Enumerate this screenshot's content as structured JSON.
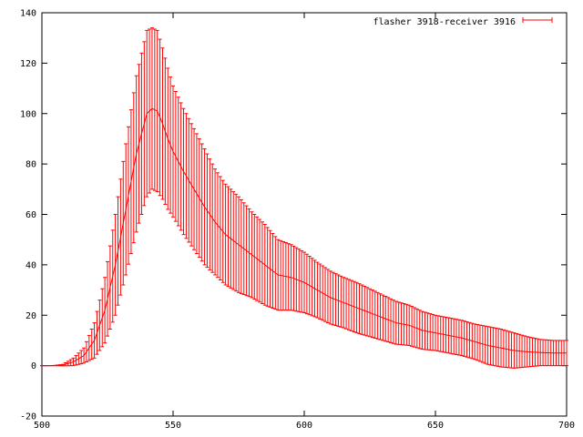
{
  "chart_data": {
    "type": "line",
    "title": "",
    "xlabel": "",
    "ylabel": "",
    "xlim": [
      500,
      700
    ],
    "ylim": [
      -20,
      140
    ],
    "xticks": [
      500,
      550,
      600,
      650,
      700
    ],
    "yticks": [
      -20,
      0,
      20,
      40,
      60,
      80,
      100,
      120,
      140
    ],
    "grid": false,
    "legend_position": "top-right",
    "series": [
      {
        "name": "flasher 3918-receiver 3916",
        "color": "#ff0000",
        "style": "line with y error bars",
        "x": [
          500,
          504,
          508,
          512,
          516,
          520,
          524,
          528,
          532,
          536,
          540,
          542,
          544,
          546,
          548,
          550,
          554,
          558,
          562,
          566,
          570,
          575,
          580,
          585,
          590,
          595,
          600,
          605,
          610,
          615,
          620,
          625,
          630,
          635,
          640,
          645,
          650,
          655,
          660,
          665,
          670,
          675,
          680,
          685,
          690,
          695,
          700
        ],
        "y": [
          0,
          0,
          0.2,
          1.5,
          4,
          10,
          22,
          40,
          62,
          84,
          100,
          102,
          101,
          96,
          90,
          85,
          77,
          70,
          63,
          57,
          52,
          48,
          44,
          40,
          36,
          35,
          33,
          30,
          27,
          25,
          23,
          21,
          19,
          17,
          16,
          14,
          13,
          12,
          11,
          9.5,
          8,
          7,
          6,
          5.5,
          5.2,
          5,
          5
        ],
        "yerr": [
          0,
          0,
          0.3,
          1.5,
          3,
          7,
          13,
          20,
          26,
          31,
          33,
          32,
          32,
          30,
          28,
          26,
          25,
          24,
          23,
          21,
          20,
          19,
          17,
          16,
          14,
          13,
          12,
          11,
          10.5,
          10,
          10,
          9.5,
          9,
          8.5,
          8,
          7.5,
          7,
          7,
          7,
          7,
          7.5,
          7.5,
          7,
          6,
          5.2,
          5,
          5
        ]
      }
    ]
  }
}
